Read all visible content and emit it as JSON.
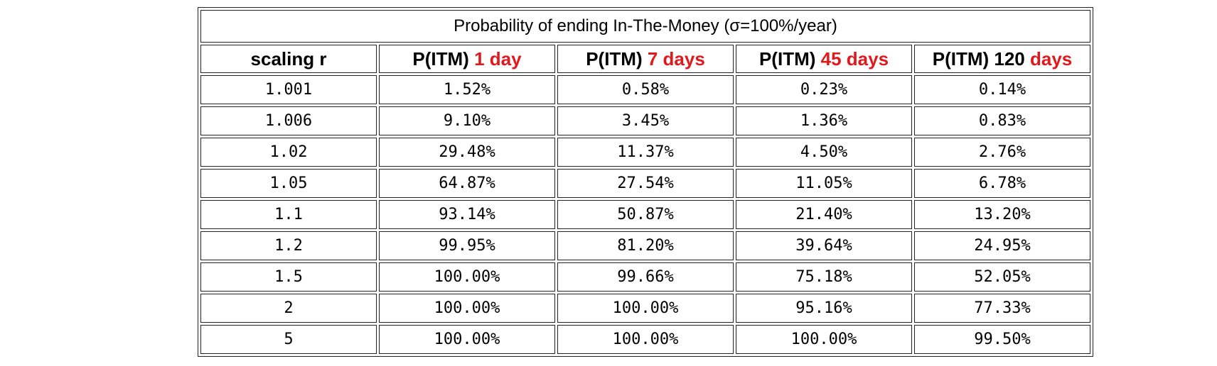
{
  "table": {
    "caption": "Probability of ending In-The-Money (σ=100%/year)",
    "columns": [
      {
        "prefix": "scaling r",
        "suffix": ""
      },
      {
        "prefix": "P(ITM) ",
        "suffix": "1 day"
      },
      {
        "prefix": "P(ITM) ",
        "suffix": "7 days"
      },
      {
        "prefix": "P(ITM) ",
        "suffix": "45 days"
      },
      {
        "prefix": "P(ITM) 120 ",
        "suffix": "days"
      }
    ],
    "rows": [
      [
        "1.001",
        "1.52%",
        "0.58%",
        "0.23%",
        "0.14%"
      ],
      [
        "1.006",
        "9.10%",
        "3.45%",
        "1.36%",
        "0.83%"
      ],
      [
        "1.02",
        "29.48%",
        "11.37%",
        "4.50%",
        "2.76%"
      ],
      [
        "1.05",
        "64.87%",
        "27.54%",
        "11.05%",
        "6.78%"
      ],
      [
        "1.1",
        "93.14%",
        "50.87%",
        "21.40%",
        "13.20%"
      ],
      [
        "1.2",
        "99.95%",
        "81.20%",
        "39.64%",
        "24.95%"
      ],
      [
        "1.5",
        "100.00%",
        "99.66%",
        "75.18%",
        "52.05%"
      ],
      [
        "2",
        "100.00%",
        "100.00%",
        "95.16%",
        "77.33%"
      ],
      [
        "5",
        "100.00%",
        "100.00%",
        "100.00%",
        "99.50%"
      ]
    ],
    "colors": {
      "highlight": "#e0191c",
      "border": "#222222"
    }
  }
}
